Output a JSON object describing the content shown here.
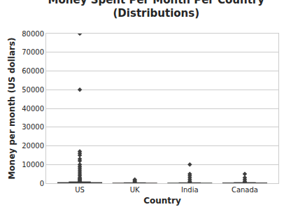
{
  "chart_data": {
    "type": "box",
    "title": "Money Spent Per Month Per Country\n(Distributions)",
    "x_label": "Country",
    "y_label": "Money per month (US dollars)",
    "categories": [
      "US",
      "UK",
      "India",
      "Canada"
    ],
    "colors": [
      "#5975a4",
      "#cc8963",
      "#5f9e6e",
      "#b55d60"
    ],
    "lower_fence": [
      0,
      0,
      0,
      0
    ],
    "q1": [
      0,
      0,
      0,
      0
    ],
    "median": [
      50,
      20,
      20,
      30
    ],
    "q3": [
      300,
      100,
      100,
      150
    ],
    "upper_fence": [
      700,
      250,
      200,
      350
    ],
    "outliers": [
      [
        800,
        1000,
        1500,
        2000,
        2500,
        3000,
        4000,
        5000,
        6000,
        7000,
        8000,
        9000,
        10000,
        12000,
        13000,
        15000,
        16000,
        17000,
        50000,
        80000
      ],
      [
        500,
        1000,
        1500,
        2000
      ],
      [
        500,
        1000,
        2000,
        3000,
        4000,
        5000,
        10000
      ],
      [
        500,
        1000,
        2000,
        3000,
        5000
      ]
    ],
    "marker": "diamond",
    "ylim": [
      0,
      80000
    ],
    "yticks": [
      0,
      10000,
      20000,
      30000,
      40000,
      50000,
      60000,
      70000,
      80000
    ],
    "grid": true
  }
}
